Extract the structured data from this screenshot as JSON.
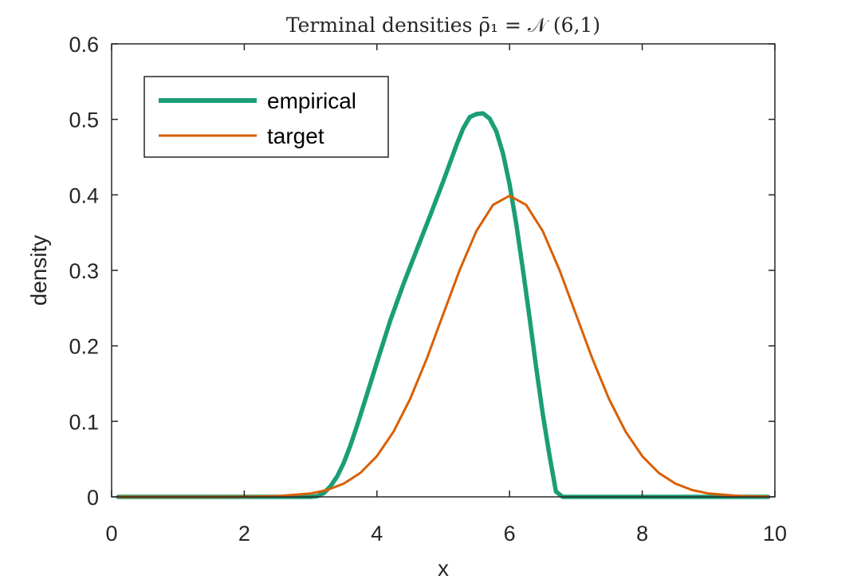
{
  "chart_data": {
    "type": "line",
    "title": "Terminal densities ρ̄₁ = 𝒩 (6,1)",
    "xlabel": "x",
    "ylabel": "density",
    "xlim": [
      0,
      10
    ],
    "ylim": [
      0,
      0.6
    ],
    "xticks": [
      0,
      2,
      4,
      6,
      8,
      10
    ],
    "yticks": [
      0,
      0.1,
      0.2,
      0.3,
      0.4,
      0.5,
      0.6
    ],
    "xtick_labels": [
      "0",
      "2",
      "4",
      "6",
      "8",
      "10"
    ],
    "ytick_labels": [
      "0",
      "0.1",
      "0.2",
      "0.3",
      "0.4",
      "0.5",
      "0.6"
    ],
    "grid": false,
    "legend_position": "top-left",
    "series": [
      {
        "name": "empirical",
        "color": "#1b9e77",
        "x": [
          0.1,
          1.0,
          2.0,
          3.0,
          3.1,
          3.2,
          3.3,
          3.4,
          3.5,
          3.6,
          3.7,
          3.8,
          3.9,
          4.0,
          4.2,
          4.4,
          4.6,
          4.8,
          5.0,
          5.2,
          5.3,
          5.4,
          5.5,
          5.6,
          5.7,
          5.8,
          5.9,
          6.0,
          6.1,
          6.2,
          6.3,
          6.4,
          6.5,
          6.6,
          6.7,
          6.8,
          6.9,
          7.0,
          8.0,
          9.0,
          9.9
        ],
        "y": [
          0,
          0,
          0,
          0,
          0.001,
          0.005,
          0.014,
          0.027,
          0.045,
          0.068,
          0.094,
          0.122,
          0.15,
          0.178,
          0.233,
          0.282,
          0.327,
          0.372,
          0.418,
          0.466,
          0.488,
          0.503,
          0.507,
          0.508,
          0.501,
          0.484,
          0.455,
          0.414,
          0.362,
          0.302,
          0.238,
          0.172,
          0.11,
          0.056,
          0.007,
          0,
          0,
          0,
          0,
          0,
          0
        ]
      },
      {
        "name": "target",
        "color": "#d95f02",
        "x": [
          0.1,
          0.5,
          1.0,
          1.5,
          2.0,
          2.5,
          3.0,
          3.25,
          3.5,
          3.75,
          4.0,
          4.25,
          4.5,
          4.75,
          5.0,
          5.25,
          5.5,
          5.75,
          6.0,
          6.25,
          6.5,
          6.75,
          7.0,
          7.25,
          7.5,
          7.75,
          8.0,
          8.25,
          8.5,
          8.75,
          9.0,
          9.5,
          9.9
        ],
        "y": [
          0,
          0,
          0,
          0,
          0.0001,
          0.0009,
          0.0044,
          0.0091,
          0.0175,
          0.0317,
          0.054,
          0.0863,
          0.1295,
          0.1826,
          0.242,
          0.3011,
          0.3521,
          0.3867,
          0.3989,
          0.3867,
          0.3521,
          0.3011,
          0.242,
          0.1826,
          0.1295,
          0.0863,
          0.054,
          0.0317,
          0.0175,
          0.0091,
          0.0044,
          0.0009,
          0.0002
        ]
      }
    ]
  }
}
